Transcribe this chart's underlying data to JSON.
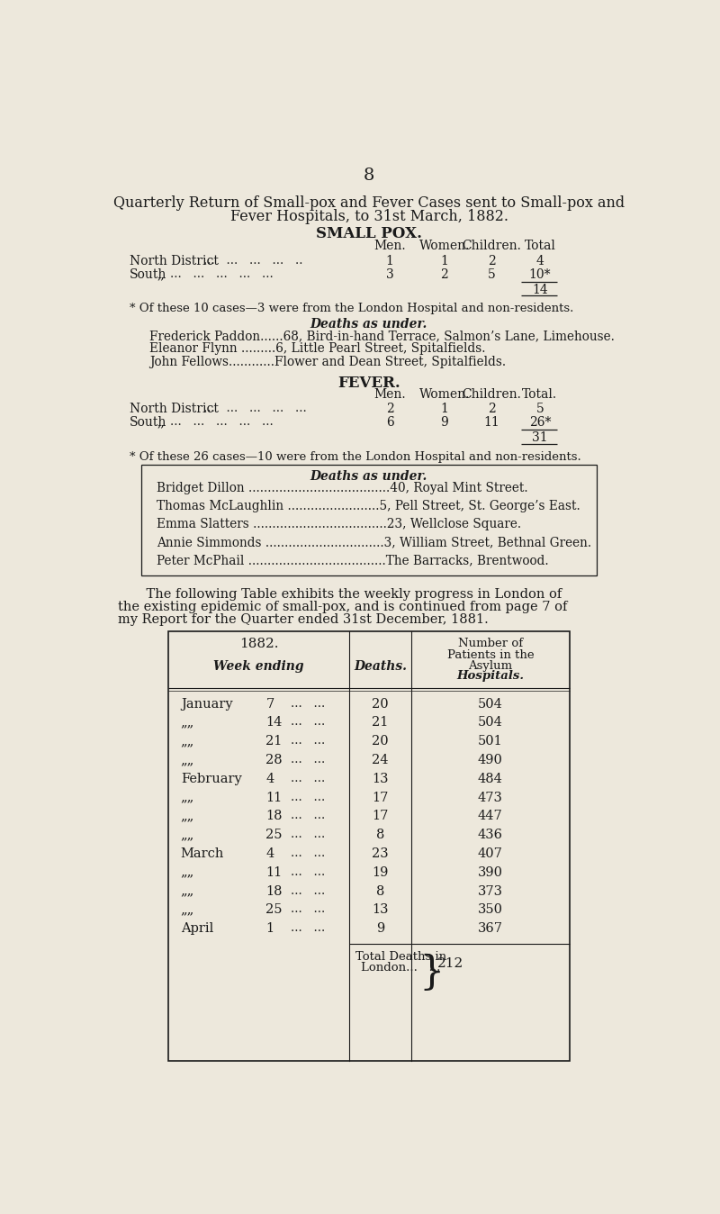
{
  "bg_color": "#ede8dc",
  "text_color": "#1a1a1a",
  "page_number": "8",
  "title_line1": "Quarterly Return of Small-pox and Fever Cases sent to Small-pox and",
  "title_line2": "Fever Hospitals, to 31st March, 1882.",
  "smallpox_heading": "SMALL POX.",
  "smallpox_col_headers": [
    "Men.",
    "Women.",
    "Children.",
    "Total"
  ],
  "smallpox_total": "14",
  "smallpox_footnote": "* Of these 10 cases—3 were from the London Hospital and non-residents.",
  "deaths_heading1": "Deaths as under.",
  "smallpox_deaths": [
    "Frederick Paddon......68, Bird-in-hand Terrace, Salmon’s Lane, Limehouse.",
    "Eleanor Flynn .........6, Little Pearl Street, Spitalfields.",
    "John Fellows............Flower and Dean Street, Spitalfields."
  ],
  "fever_heading": "FEVER.",
  "fever_col_headers": [
    "Men.",
    "Women.",
    "Children.",
    "Total."
  ],
  "fever_total": "31",
  "fever_footnote": "* Of these 26 cases—10 were from the London Hospital and non-residents.",
  "deaths_heading2": "Deaths as under.",
  "fever_deaths": [
    "Bridget Dillon .....................................40, Royal Mint Street.",
    "Thomas McLaughlin ........................5, Pell Street, St. George’s East.",
    "Emma Slatters ...................................23, Wellclose Square.",
    "Annie Simmonds ...............................3, William Street, Bethnal Green.",
    "Peter McPhail ....................................The Barracks, Brentwood."
  ],
  "narrative_line1": "    The following Table exhibits the weekly progress in London of",
  "narrative_line2": "the existing epidemic of small-pox, and is continued from page 7 of",
  "narrative_line3": "my Report for the Quarter ended 31st December, 1881.",
  "table_rows": [
    {
      "week_month": "January",
      "week_day": "7",
      "deaths": "20",
      "patients": "504"
    },
    {
      "week_month": "„„",
      "week_day": "14",
      "deaths": "21",
      "patients": "504"
    },
    {
      "week_month": "„„",
      "week_day": "21",
      "deaths": "20",
      "patients": "501"
    },
    {
      "week_month": "„„",
      "week_day": "28",
      "deaths": "24",
      "patients": "490"
    },
    {
      "week_month": "February",
      "week_day": "4",
      "deaths": "13",
      "patients": "484"
    },
    {
      "week_month": "„„",
      "week_day": "11",
      "deaths": "17",
      "patients": "473"
    },
    {
      "week_month": "„„",
      "week_day": "18",
      "deaths": "17",
      "patients": "447"
    },
    {
      "week_month": "„„",
      "week_day": "25",
      "deaths": "8",
      "patients": "436"
    },
    {
      "week_month": "March",
      "week_day": "4",
      "deaths": "23",
      "patients": "407"
    },
    {
      "week_month": "„„",
      "week_day": "11",
      "deaths": "19",
      "patients": "390"
    },
    {
      "week_month": "„„",
      "week_day": "18",
      "deaths": "8",
      "patients": "373"
    },
    {
      "week_month": "„„",
      "week_day": "25",
      "deaths": "13",
      "patients": "350"
    },
    {
      "week_month": "April",
      "week_day": "1",
      "deaths": "9",
      "patients": "367"
    }
  ],
  "total_deaths_value": "212"
}
